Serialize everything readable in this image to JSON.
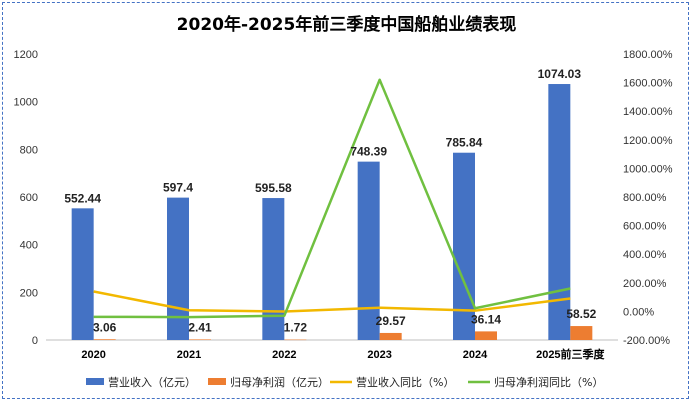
{
  "chart_data": {
    "type": "bar",
    "title": "2020年-2025年前三季度中国船舶业绩表现",
    "categories": [
      "2020",
      "2021",
      "2022",
      "2023",
      "2024",
      "2025前三季度"
    ],
    "series": [
      {
        "name": "营业收入（亿元）",
        "type": "bar",
        "axis": "left",
        "color": "#4472C4",
        "values": [
          552.44,
          597.4,
          595.58,
          748.39,
          785.84,
          1074.03
        ],
        "labels": [
          "552.44",
          "597.4",
          "595.58",
          "748.39",
          "785.84",
          "1074.03"
        ]
      },
      {
        "name": "归母净利润（亿元）",
        "type": "bar",
        "axis": "left",
        "color": "#ED7D31",
        "values": [
          3.06,
          2.41,
          1.72,
          29.57,
          36.14,
          58.52
        ],
        "labels": [
          "3.06",
          "2.41",
          "1.72",
          "29.57",
          "36.14",
          "58.52"
        ]
      },
      {
        "name": "营业收入同比（%）",
        "type": "line",
        "axis": "right",
        "color": "#F2B800",
        "values": [
          139,
          8,
          -0.3,
          25.7,
          5,
          90
        ]
      },
      {
        "name": "归母净利润同比（%）",
        "type": "line",
        "axis": "right",
        "color": "#70C040",
        "values": [
          -38,
          -40,
          -30,
          1620,
          22,
          160
        ]
      }
    ],
    "left_axis": {
      "min": 0,
      "max": 1200,
      "step": 200,
      "ticks": [
        "0",
        "200",
        "400",
        "600",
        "800",
        "1000",
        "1200"
      ]
    },
    "right_axis": {
      "min": -200,
      "max": 1800,
      "step": 200,
      "ticks": [
        "-200.00%",
        "0.00%",
        "200.00%",
        "400.00%",
        "600.00%",
        "800.00%",
        "1000.00%",
        "1200.00%",
        "1400.00%",
        "1600.00%",
        "1800.00%"
      ]
    },
    "legend_position": "bottom",
    "grid": false
  }
}
